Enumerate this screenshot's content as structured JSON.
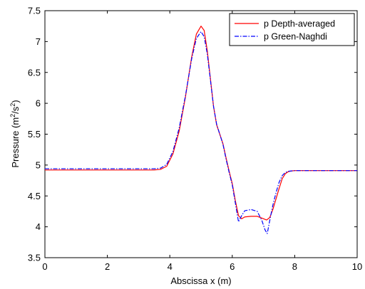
{
  "chart_data": {
    "type": "line",
    "xlabel": "Abscissa x (m)",
    "ylabel": {
      "prefix": "Pressure (m",
      "sup1": "2",
      "mid": "/s",
      "sup2": "2",
      "suffix": ")"
    },
    "xlim": [
      0,
      10
    ],
    "ylim": [
      3.5,
      7.5
    ],
    "x_ticks": [
      0,
      2,
      4,
      6,
      8,
      10
    ],
    "y_ticks": [
      3.5,
      4,
      4.5,
      5,
      5.5,
      6,
      6.5,
      7,
      7.5
    ],
    "x_tick_labels": [
      "0",
      "2",
      "4",
      "6",
      "8",
      "10"
    ],
    "y_tick_labels": [
      "3.5",
      "4",
      "4.5",
      "5",
      "5.5",
      "6",
      "6.5",
      "7",
      "7.5"
    ],
    "grid": false,
    "legend_position": "top-right",
    "series": [
      {
        "name": "p Depth-averaged",
        "color": "#ff0000",
        "dash": "solid",
        "x": [
          0,
          3.5,
          3.7,
          3.9,
          4.1,
          4.3,
          4.5,
          4.7,
          4.85,
          5.0,
          5.1,
          5.2,
          5.3,
          5.4,
          5.5,
          5.6,
          5.7,
          5.8,
          5.9,
          6.0,
          6.1,
          6.2,
          6.3,
          6.4,
          6.6,
          6.8,
          6.95,
          7.1,
          7.2,
          7.3,
          7.4,
          7.5,
          7.6,
          7.7,
          7.8,
          7.9,
          8.0,
          8.3,
          10
        ],
        "y": [
          4.92,
          4.92,
          4.93,
          4.98,
          5.18,
          5.55,
          6.1,
          6.75,
          7.12,
          7.25,
          7.18,
          6.85,
          6.4,
          5.95,
          5.65,
          5.5,
          5.35,
          5.12,
          4.9,
          4.7,
          4.42,
          4.18,
          4.13,
          4.16,
          4.17,
          4.17,
          4.14,
          4.11,
          4.15,
          4.28,
          4.45,
          4.62,
          4.78,
          4.86,
          4.895,
          4.905,
          4.91,
          4.91,
          4.91
        ]
      },
      {
        "name": "p Green-Naghdi",
        "color": "#0000ff",
        "dash": "dashdot",
        "x": [
          0,
          3.5,
          3.7,
          3.9,
          4.1,
          4.3,
          4.5,
          4.7,
          4.85,
          5.0,
          5.1,
          5.2,
          5.3,
          5.4,
          5.5,
          5.6,
          5.7,
          5.8,
          5.9,
          6.0,
          6.1,
          6.2,
          6.3,
          6.4,
          6.6,
          6.8,
          6.95,
          7.05,
          7.12,
          7.2,
          7.3,
          7.4,
          7.5,
          7.6,
          7.7,
          7.8,
          7.9,
          8.0,
          8.3,
          10
        ],
        "y": [
          4.94,
          4.94,
          4.95,
          5.01,
          5.22,
          5.6,
          6.12,
          6.72,
          7.05,
          7.16,
          7.08,
          6.8,
          6.38,
          5.95,
          5.66,
          5.5,
          5.34,
          5.1,
          4.88,
          4.68,
          4.38,
          4.08,
          4.18,
          4.26,
          4.28,
          4.25,
          4.1,
          3.95,
          3.89,
          4.1,
          4.35,
          4.55,
          4.72,
          4.83,
          4.88,
          4.9,
          4.905,
          4.91,
          4.91,
          4.91
        ]
      }
    ]
  }
}
